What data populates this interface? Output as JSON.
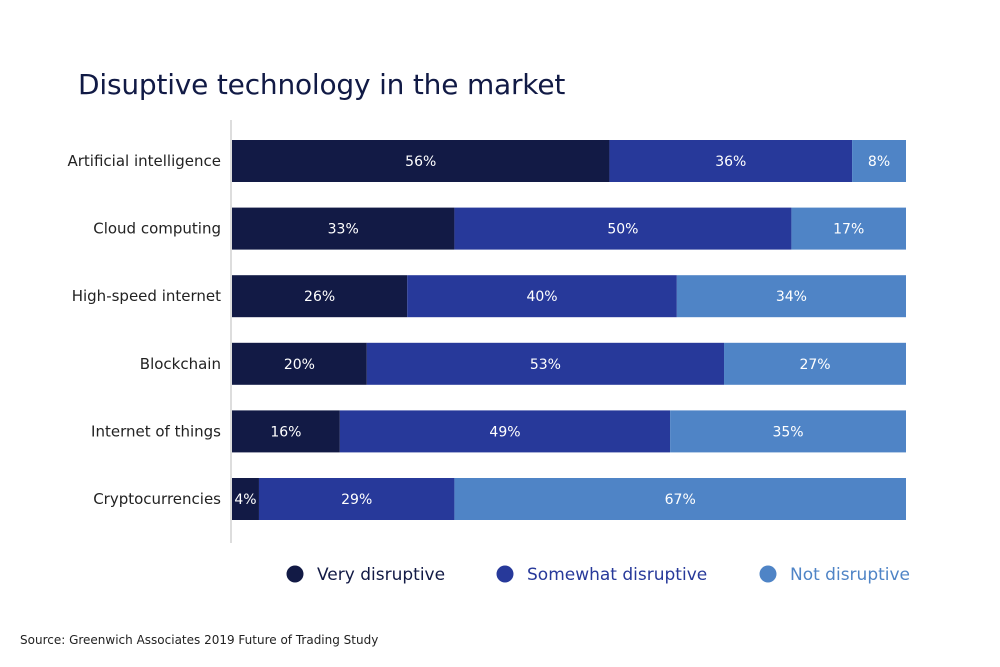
{
  "chart_data": {
    "type": "bar",
    "orientation": "horizontal",
    "stacked": true,
    "title": "Disuptive technology in the market",
    "categories": [
      "Artificial intelligence",
      "Cloud computing",
      "High-speed internet",
      "Blockchain",
      "Internet of things",
      "Cryptocurrencies"
    ],
    "series": [
      {
        "name": "Very disruptive",
        "color": "#121a45",
        "values": [
          56,
          33,
          26,
          20,
          16,
          4
        ]
      },
      {
        "name": "Somewhat disruptive",
        "color": "#27399a",
        "values": [
          36,
          50,
          40,
          53,
          49,
          29
        ]
      },
      {
        "name": "Not disruptive",
        "color": "#4f84c6",
        "values": [
          8,
          17,
          34,
          27,
          35,
          67
        ]
      }
    ],
    "value_suffix": "%",
    "xlim": [
      0,
      100
    ],
    "legend_position": "bottom-right",
    "legend_text_colors": [
      "#121a45",
      "#27399a",
      "#4f84c6"
    ]
  },
  "source": "Source: Greenwich Associates 2019 Future of Trading Study"
}
